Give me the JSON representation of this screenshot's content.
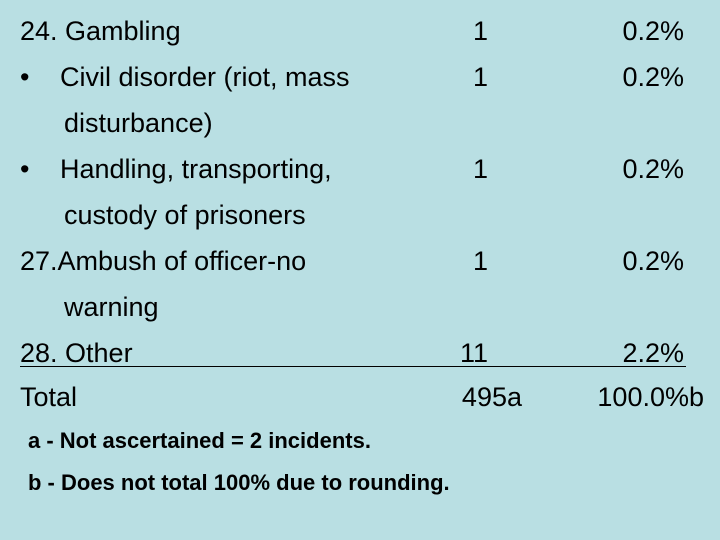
{
  "rows": [
    {
      "label": "24.  Gambling",
      "count": "1",
      "percent": "0.2%"
    },
    {
      "bullet": "•",
      "label": "Civil disorder (riot, mass",
      "label2": "disturbance)",
      "count": "1",
      "percent": "0.2%"
    },
    {
      "bullet": "•",
      "label": "Handling, transporting,",
      "label2": "custody of prisoners",
      "count": "1",
      "percent": "0.2%"
    },
    {
      "label": "27.Ambush of officer-no",
      "label2": "warning",
      "count": "1",
      "percent": "0.2%"
    },
    {
      "label": "28.  Other",
      "count": "11",
      "percent": "2.2%"
    },
    {
      "label": "Total",
      "count": "495a",
      "percent": "100.0%b"
    }
  ],
  "notes": [
    "a - Not ascertained = 2 incidents.",
    "b - Does not total 100% due to rounding."
  ]
}
